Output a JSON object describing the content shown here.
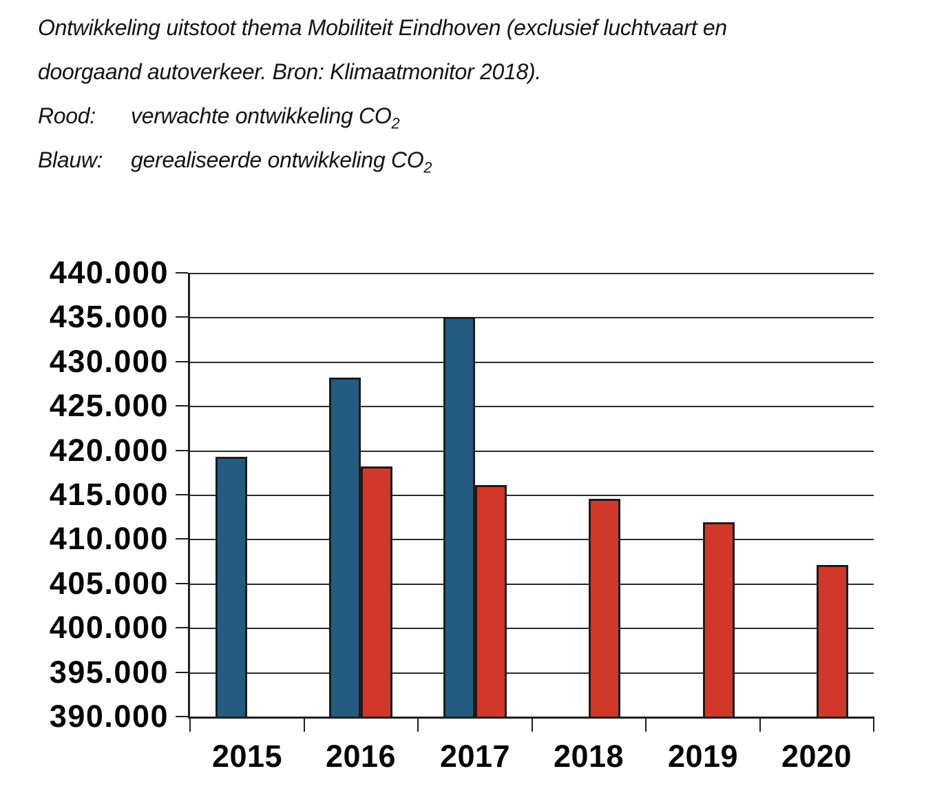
{
  "caption": {
    "line1": "Ontwikkeling uitstoot thema Mobiliteit Eindhoven (exclusief luchtvaart en",
    "line2": "doorgaand autoverkeer. Bron: Klimaatmonitor 2018).",
    "legend": [
      {
        "label": "Rood:",
        "text": "verwachte ontwikkeling CO",
        "sub": "2"
      },
      {
        "label": "Blauw:",
        "text": "gerealiseerde ontwikkeling CO",
        "sub": "2"
      }
    ]
  },
  "chart_data": {
    "type": "bar",
    "title": "Ontwikkeling uitstoot thema Mobiliteit Eindhoven (exclusief luchtvaart en doorgaand autoverkeer. Bron: Klimaatmonitor 2018).",
    "categories": [
      "2015",
      "2016",
      "2017",
      "2018",
      "2019",
      "2020"
    ],
    "series": [
      {
        "name": "gerealiseerde ontwikkeling CO2",
        "caption_color_word": "Blauw",
        "color": "#235C80",
        "values": [
          419300,
          428200,
          435000,
          null,
          null,
          null
        ]
      },
      {
        "name": "verwachte ontwikkeling CO2",
        "caption_color_word": "Rood",
        "color": "#D2382A",
        "values": [
          null,
          418200,
          416100,
          414500,
          411900,
          407100
        ]
      }
    ],
    "ylim": [
      390000,
      440000
    ],
    "ytick_step": 5000,
    "ytick_labels": [
      "440.000",
      "435.000",
      "430.000",
      "425.000",
      "420.000",
      "415.000",
      "410.000",
      "405.000",
      "400.000",
      "395.000",
      "390.000"
    ],
    "xlabel": "",
    "ylabel": "",
    "grid": "horizontal",
    "legend_position": "described in caption text"
  }
}
